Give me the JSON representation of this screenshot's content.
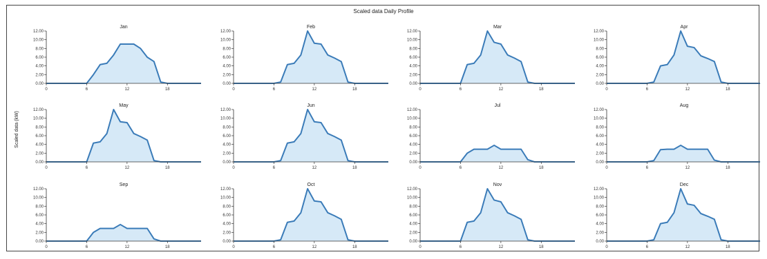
{
  "chart_data": {
    "type": "area",
    "title": "Scaled data Daily Profile",
    "ylabel": "Scaled data (kW)",
    "xlabel": "",
    "x_ticks": [
      "0",
      "6",
      "12",
      "18"
    ],
    "y_ticks": [
      "0.00",
      "2.00",
      "4.00",
      "6.00",
      "8.00",
      "10.00",
      "12.00"
    ],
    "xlim": [
      0,
      23
    ],
    "ylim": [
      0,
      12
    ],
    "grid": false,
    "colors": {
      "line": "#3a7bb8",
      "fill": "#d6e9f7"
    },
    "x": [
      0,
      1,
      2,
      3,
      4,
      5,
      6,
      7,
      8,
      9,
      10,
      11,
      12,
      13,
      14,
      15,
      16,
      17,
      18,
      19,
      20,
      21,
      22,
      23
    ],
    "panels": [
      {
        "name": "Jan",
        "values": [
          0,
          0,
          0,
          0,
          0,
          0,
          0,
          2,
          4.3,
          4.6,
          6.5,
          9,
          9,
          9,
          8,
          6,
          5,
          0.3,
          0,
          0,
          0,
          0,
          0,
          0
        ]
      },
      {
        "name": "Feb",
        "values": [
          0,
          0,
          0,
          0,
          0,
          0,
          0,
          0.3,
          4.3,
          4.6,
          6.5,
          12,
          9.2,
          9,
          6.5,
          5.8,
          5,
          0.3,
          0,
          0,
          0,
          0,
          0,
          0
        ]
      },
      {
        "name": "Mar",
        "values": [
          0,
          0,
          0,
          0,
          0,
          0,
          0,
          4.3,
          4.6,
          6.5,
          12,
          9.4,
          9,
          6.5,
          5.8,
          5,
          0.3,
          0,
          0,
          0,
          0,
          0,
          0,
          0
        ]
      },
      {
        "name": "Apr",
        "values": [
          0,
          0,
          0,
          0,
          0,
          0,
          0,
          0.3,
          4,
          4.3,
          6.5,
          12,
          8.5,
          8.2,
          6.3,
          5.7,
          5,
          0.3,
          0,
          0,
          0,
          0,
          0,
          0
        ]
      },
      {
        "name": "May",
        "values": [
          0,
          0,
          0,
          0,
          0,
          0,
          0,
          4.3,
          4.6,
          6.5,
          12,
          9.2,
          9,
          6.5,
          5.8,
          5,
          0.3,
          0,
          0,
          0,
          0,
          0,
          0,
          0
        ]
      },
      {
        "name": "Jun",
        "values": [
          0,
          0,
          0,
          0,
          0,
          0,
          0,
          0.3,
          4.3,
          4.6,
          6.5,
          12,
          9.2,
          9,
          6.5,
          5.8,
          5,
          0.3,
          0,
          0,
          0,
          0,
          0,
          0
        ]
      },
      {
        "name": "Jul",
        "values": [
          0,
          0,
          0,
          0,
          0,
          0,
          0,
          2,
          2.9,
          2.9,
          2.9,
          3.8,
          2.9,
          2.9,
          2.9,
          2.9,
          0.5,
          0,
          0,
          0,
          0,
          0,
          0,
          0
        ]
      },
      {
        "name": "Aug",
        "values": [
          0,
          0,
          0,
          0,
          0,
          0,
          0,
          0.3,
          2.8,
          2.9,
          2.9,
          3.8,
          2.9,
          2.9,
          2.9,
          2.9,
          0.4,
          0,
          0,
          0,
          0,
          0,
          0,
          0
        ]
      },
      {
        "name": "Sep",
        "values": [
          0,
          0,
          0,
          0,
          0,
          0,
          0,
          2,
          2.9,
          2.9,
          2.9,
          3.8,
          2.9,
          2.9,
          2.9,
          2.9,
          0.5,
          0,
          0,
          0,
          0,
          0,
          0,
          0
        ]
      },
      {
        "name": "Oct",
        "values": [
          0,
          0,
          0,
          0,
          0,
          0,
          0,
          0.3,
          4.3,
          4.6,
          6.5,
          12,
          9.2,
          9,
          6.5,
          5.8,
          5,
          0.3,
          0,
          0,
          0,
          0,
          0,
          0
        ]
      },
      {
        "name": "Nov",
        "values": [
          0,
          0,
          0,
          0,
          0,
          0,
          0,
          4.3,
          4.6,
          6.5,
          12,
          9.4,
          9,
          6.5,
          5.8,
          5,
          0.3,
          0,
          0,
          0,
          0,
          0,
          0,
          0
        ]
      },
      {
        "name": "Dec",
        "values": [
          0,
          0,
          0,
          0,
          0,
          0,
          0,
          0.3,
          4,
          4.3,
          6.5,
          12,
          8.5,
          8.2,
          6.3,
          5.7,
          5,
          0.3,
          0,
          0,
          0,
          0,
          0,
          0
        ]
      }
    ]
  }
}
